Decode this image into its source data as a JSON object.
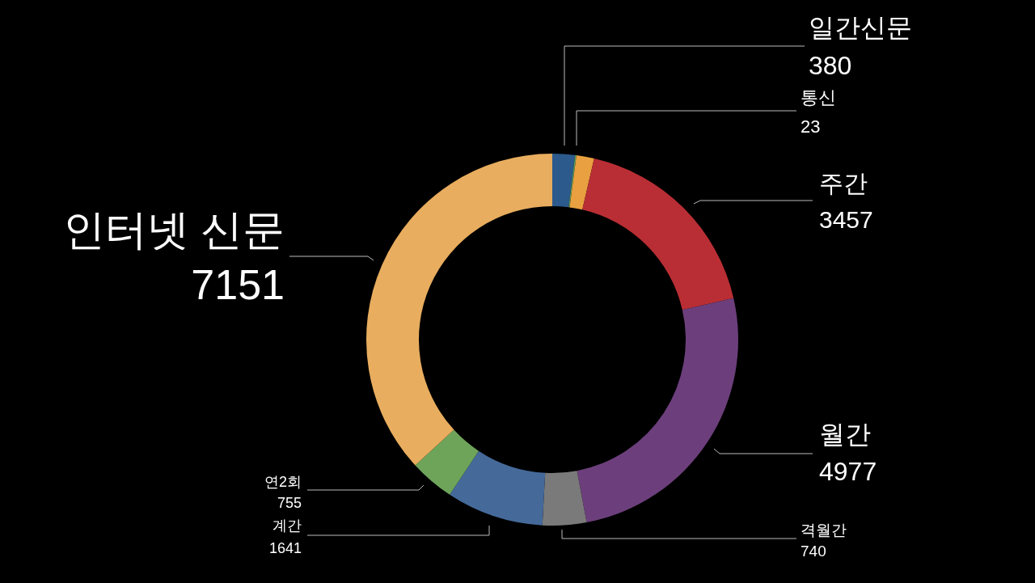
{
  "chart_data": {
    "type": "donut",
    "categories": [
      "일간신문",
      "통신",
      null,
      "주간",
      "월간",
      "격월간",
      "계간",
      "연2회",
      "인터넷 신문"
    ],
    "values": [
      380,
      23,
      300,
      3457,
      4977,
      740,
      1641,
      755,
      7151
    ],
    "colors": [
      "#2c5a8c",
      "#5a9a5a",
      "#e8a040",
      "#b92e34",
      "#6c3f7c",
      "#7a7a7a",
      "#456a9a",
      "#6ea45a",
      "#e8ad5e"
    ],
    "value_labels": [
      "380",
      "23",
      null,
      "3457",
      "4977",
      "740",
      "1641",
      "755",
      "7151"
    ]
  }
}
